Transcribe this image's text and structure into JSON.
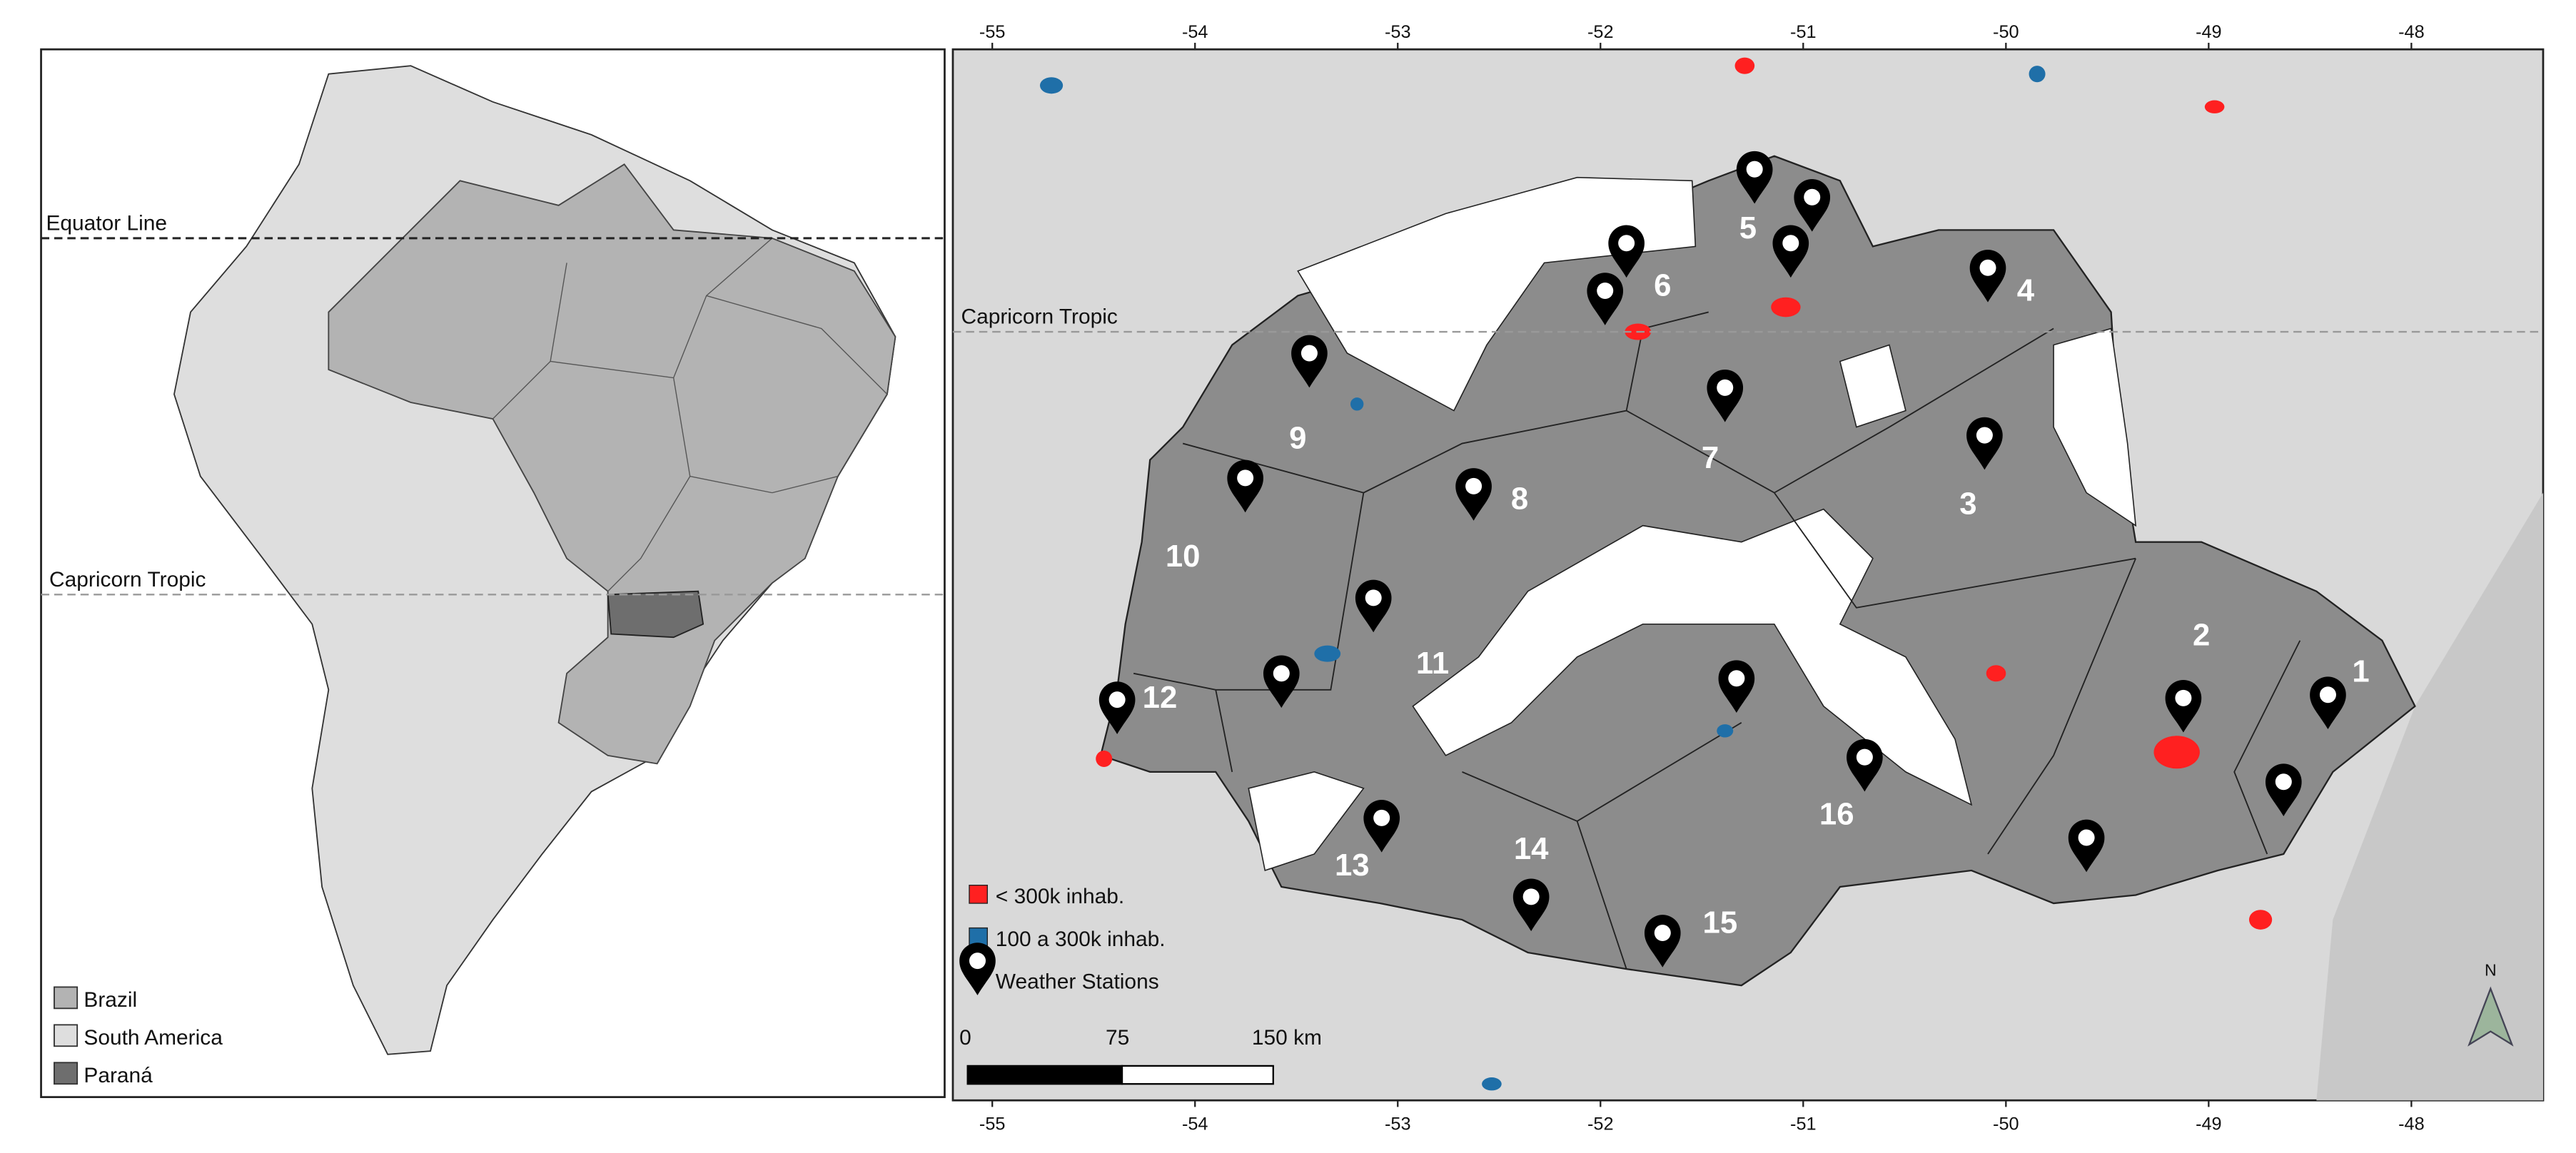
{
  "inset": {
    "equator_label": "Equator Line",
    "capricorn_label": "Capricorn Tropic",
    "legend": [
      {
        "label": "Brazil",
        "color": "#b3b3b3"
      },
      {
        "label": "South America",
        "color": "#dedede"
      },
      {
        "label": "Paraná",
        "color": "#6e6e6e"
      }
    ]
  },
  "map": {
    "top_ticks": [
      -55,
      -54,
      -53,
      -52,
      -51,
      -50,
      -49,
      -48
    ],
    "bottom_ticks": [
      -55,
      -54,
      -53,
      -52,
      -51,
      -50,
      -49,
      -48
    ],
    "capricorn_label": "Capricorn Tropic",
    "regions": [
      "1",
      "2",
      "3",
      "4",
      "5",
      "6",
      "7",
      "8",
      "9",
      "10",
      "11",
      "12",
      "13",
      "14",
      "15",
      "16"
    ],
    "legend": [
      {
        "label": "< 300k inhab.",
        "color": "#ff2020"
      },
      {
        "label": "100 a 300k inhab.",
        "color": "#1f6fa8"
      },
      {
        "label": "Weather Stations"
      }
    ],
    "scale_labels": [
      "0",
      "75",
      "150 km"
    ],
    "north": "N"
  }
}
